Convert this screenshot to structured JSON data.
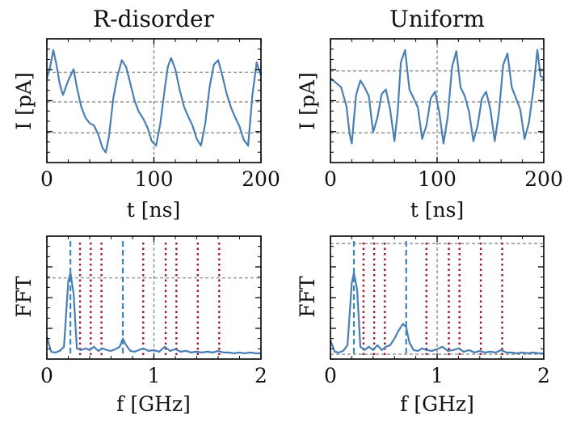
{
  "chart_data": [
    {
      "type": "line",
      "title": "R-disorder",
      "xlabel": "t [ns]",
      "ylabel": "I [pA]",
      "xlim": [
        0,
        200
      ],
      "x_ticks": [
        "0",
        "100",
        "200"
      ],
      "grid": true,
      "series": [
        {
          "color": "#4a7fb5",
          "x": [
            0,
            3,
            6,
            9,
            12,
            15,
            20,
            25,
            28,
            32,
            36,
            40,
            44,
            48,
            52,
            55,
            58,
            62,
            66,
            70,
            74,
            78,
            82,
            86,
            90,
            94,
            98,
            102,
            106,
            110,
            113,
            116,
            120,
            124,
            128,
            132,
            136,
            140,
            144,
            148,
            152,
            156,
            160,
            164,
            168,
            172,
            176,
            180,
            184,
            188,
            192,
            196,
            200
          ],
          "y": [
            0.7,
            0.8,
            0.95,
            0.82,
            0.65,
            0.55,
            0.68,
            0.78,
            0.62,
            0.45,
            0.35,
            0.3,
            0.28,
            0.2,
            0.08,
            0.04,
            0.18,
            0.52,
            0.72,
            0.86,
            0.8,
            0.65,
            0.5,
            0.4,
            0.34,
            0.26,
            0.14,
            0.1,
            0.3,
            0.6,
            0.8,
            0.88,
            0.78,
            0.6,
            0.45,
            0.36,
            0.28,
            0.16,
            0.1,
            0.3,
            0.62,
            0.82,
            0.86,
            0.72,
            0.56,
            0.44,
            0.35,
            0.27,
            0.15,
            0.1,
            0.55,
            0.84,
            0.72
          ]
        }
      ]
    },
    {
      "type": "line",
      "title": "Uniform",
      "xlabel": "t [ns]",
      "ylabel": "I [pA]",
      "xlim": [
        0,
        200
      ],
      "x_ticks": [
        "0",
        "100",
        "200"
      ],
      "grid": true,
      "series": [
        {
          "color": "#4a7fb5",
          "x": [
            0,
            5,
            10,
            15,
            18,
            20,
            24,
            28,
            32,
            36,
            40,
            44,
            48,
            52,
            56,
            60,
            63,
            66,
            70,
            74,
            78,
            82,
            86,
            90,
            94,
            98,
            102,
            106,
            110,
            114,
            118,
            122,
            126,
            130,
            134,
            138,
            142,
            146,
            150,
            154,
            158,
            162,
            166,
            170,
            174,
            178,
            182,
            186,
            190,
            194,
            197,
            200
          ],
          "y": [
            0.7,
            0.66,
            0.62,
            0.45,
            0.2,
            0.12,
            0.55,
            0.68,
            0.62,
            0.54,
            0.22,
            0.35,
            0.56,
            0.6,
            0.42,
            0.14,
            0.4,
            0.84,
            0.95,
            0.6,
            0.52,
            0.44,
            0.16,
            0.28,
            0.52,
            0.58,
            0.4,
            0.12,
            0.36,
            0.8,
            0.94,
            0.62,
            0.54,
            0.4,
            0.14,
            0.28,
            0.52,
            0.58,
            0.42,
            0.14,
            0.4,
            0.82,
            0.92,
            0.62,
            0.52,
            0.42,
            0.16,
            0.3,
            0.58,
            0.95,
            0.72,
            0.7
          ]
        }
      ]
    },
    {
      "type": "line",
      "title": "",
      "xlabel": "f [GHz]",
      "ylabel": "FFT",
      "xlim": [
        0,
        2
      ],
      "x_ticks": [
        "0",
        "1",
        "2"
      ],
      "grid": true,
      "dashed_marker_color": "#3a86c0",
      "dotted_marker_color": "#a0142a",
      "dashed_markers": [
        0.22,
        0.71
      ],
      "dotted_markers": [
        0.31,
        0.41,
        0.51,
        0.9,
        1.11,
        1.21,
        1.41,
        1.61
      ],
      "series": [
        {
          "color": "#4a7fb5",
          "x": [
            0,
            0.04,
            0.08,
            0.12,
            0.16,
            0.2,
            0.22,
            0.25,
            0.28,
            0.32,
            0.36,
            0.4,
            0.44,
            0.48,
            0.52,
            0.56,
            0.6,
            0.64,
            0.68,
            0.71,
            0.74,
            0.78,
            0.82,
            0.86,
            0.9,
            0.95,
            1.0,
            1.05,
            1.1,
            1.15,
            1.2,
            1.25,
            1.3,
            1.35,
            1.4,
            1.45,
            1.5,
            1.55,
            1.6,
            1.65,
            1.7,
            1.75,
            1.8,
            1.85,
            1.9,
            1.95,
            2.0
          ],
          "y": [
            0.22,
            0.04,
            0.03,
            0.05,
            0.1,
            0.9,
            1.0,
            0.75,
            0.08,
            0.06,
            0.08,
            0.06,
            0.1,
            0.05,
            0.08,
            0.06,
            0.05,
            0.07,
            0.1,
            0.2,
            0.12,
            0.05,
            0.04,
            0.06,
            0.08,
            0.05,
            0.06,
            0.04,
            0.1,
            0.05,
            0.07,
            0.04,
            0.05,
            0.03,
            0.04,
            0.03,
            0.04,
            0.03,
            0.05,
            0.03,
            0.03,
            0.02,
            0.03,
            0.02,
            0.03,
            0.02,
            0.02
          ]
        }
      ]
    },
    {
      "type": "line",
      "title": "",
      "xlabel": "f [GHz]",
      "ylabel": "FFT",
      "xlim": [
        0,
        2
      ],
      "x_ticks": [
        "0",
        "1",
        "2"
      ],
      "grid": true,
      "dashed_marker_color": "#3a86c0",
      "dotted_marker_color": "#a0142a",
      "dashed_markers": [
        0.22,
        0.71
      ],
      "dotted_markers": [
        0.31,
        0.41,
        0.51,
        0.9,
        1.11,
        1.21,
        1.41,
        1.61
      ],
      "series": [
        {
          "color": "#4a7fb5",
          "x": [
            0,
            0.04,
            0.08,
            0.12,
            0.16,
            0.2,
            0.22,
            0.25,
            0.28,
            0.32,
            0.36,
            0.4,
            0.44,
            0.48,
            0.52,
            0.56,
            0.6,
            0.64,
            0.68,
            0.71,
            0.74,
            0.78,
            0.82,
            0.86,
            0.9,
            0.95,
            1.0,
            1.05,
            1.1,
            1.15,
            1.2,
            1.25,
            1.3,
            1.35,
            1.4,
            1.45,
            1.5,
            1.55,
            1.6,
            1.65,
            1.7,
            1.75,
            1.8,
            1.85,
            1.9,
            1.95,
            2.0
          ],
          "y": [
            0.18,
            0.04,
            0.03,
            0.05,
            0.12,
            0.88,
            1.0,
            0.8,
            0.1,
            0.06,
            0.1,
            0.06,
            0.12,
            0.06,
            0.1,
            0.12,
            0.2,
            0.3,
            0.38,
            0.34,
            0.15,
            0.06,
            0.05,
            0.08,
            0.06,
            0.05,
            0.07,
            0.1,
            0.05,
            0.06,
            0.08,
            0.04,
            0.06,
            0.03,
            0.05,
            0.03,
            0.04,
            0.03,
            0.06,
            0.03,
            0.03,
            0.02,
            0.03,
            0.02,
            0.03,
            0.02,
            0.02
          ]
        }
      ]
    }
  ]
}
